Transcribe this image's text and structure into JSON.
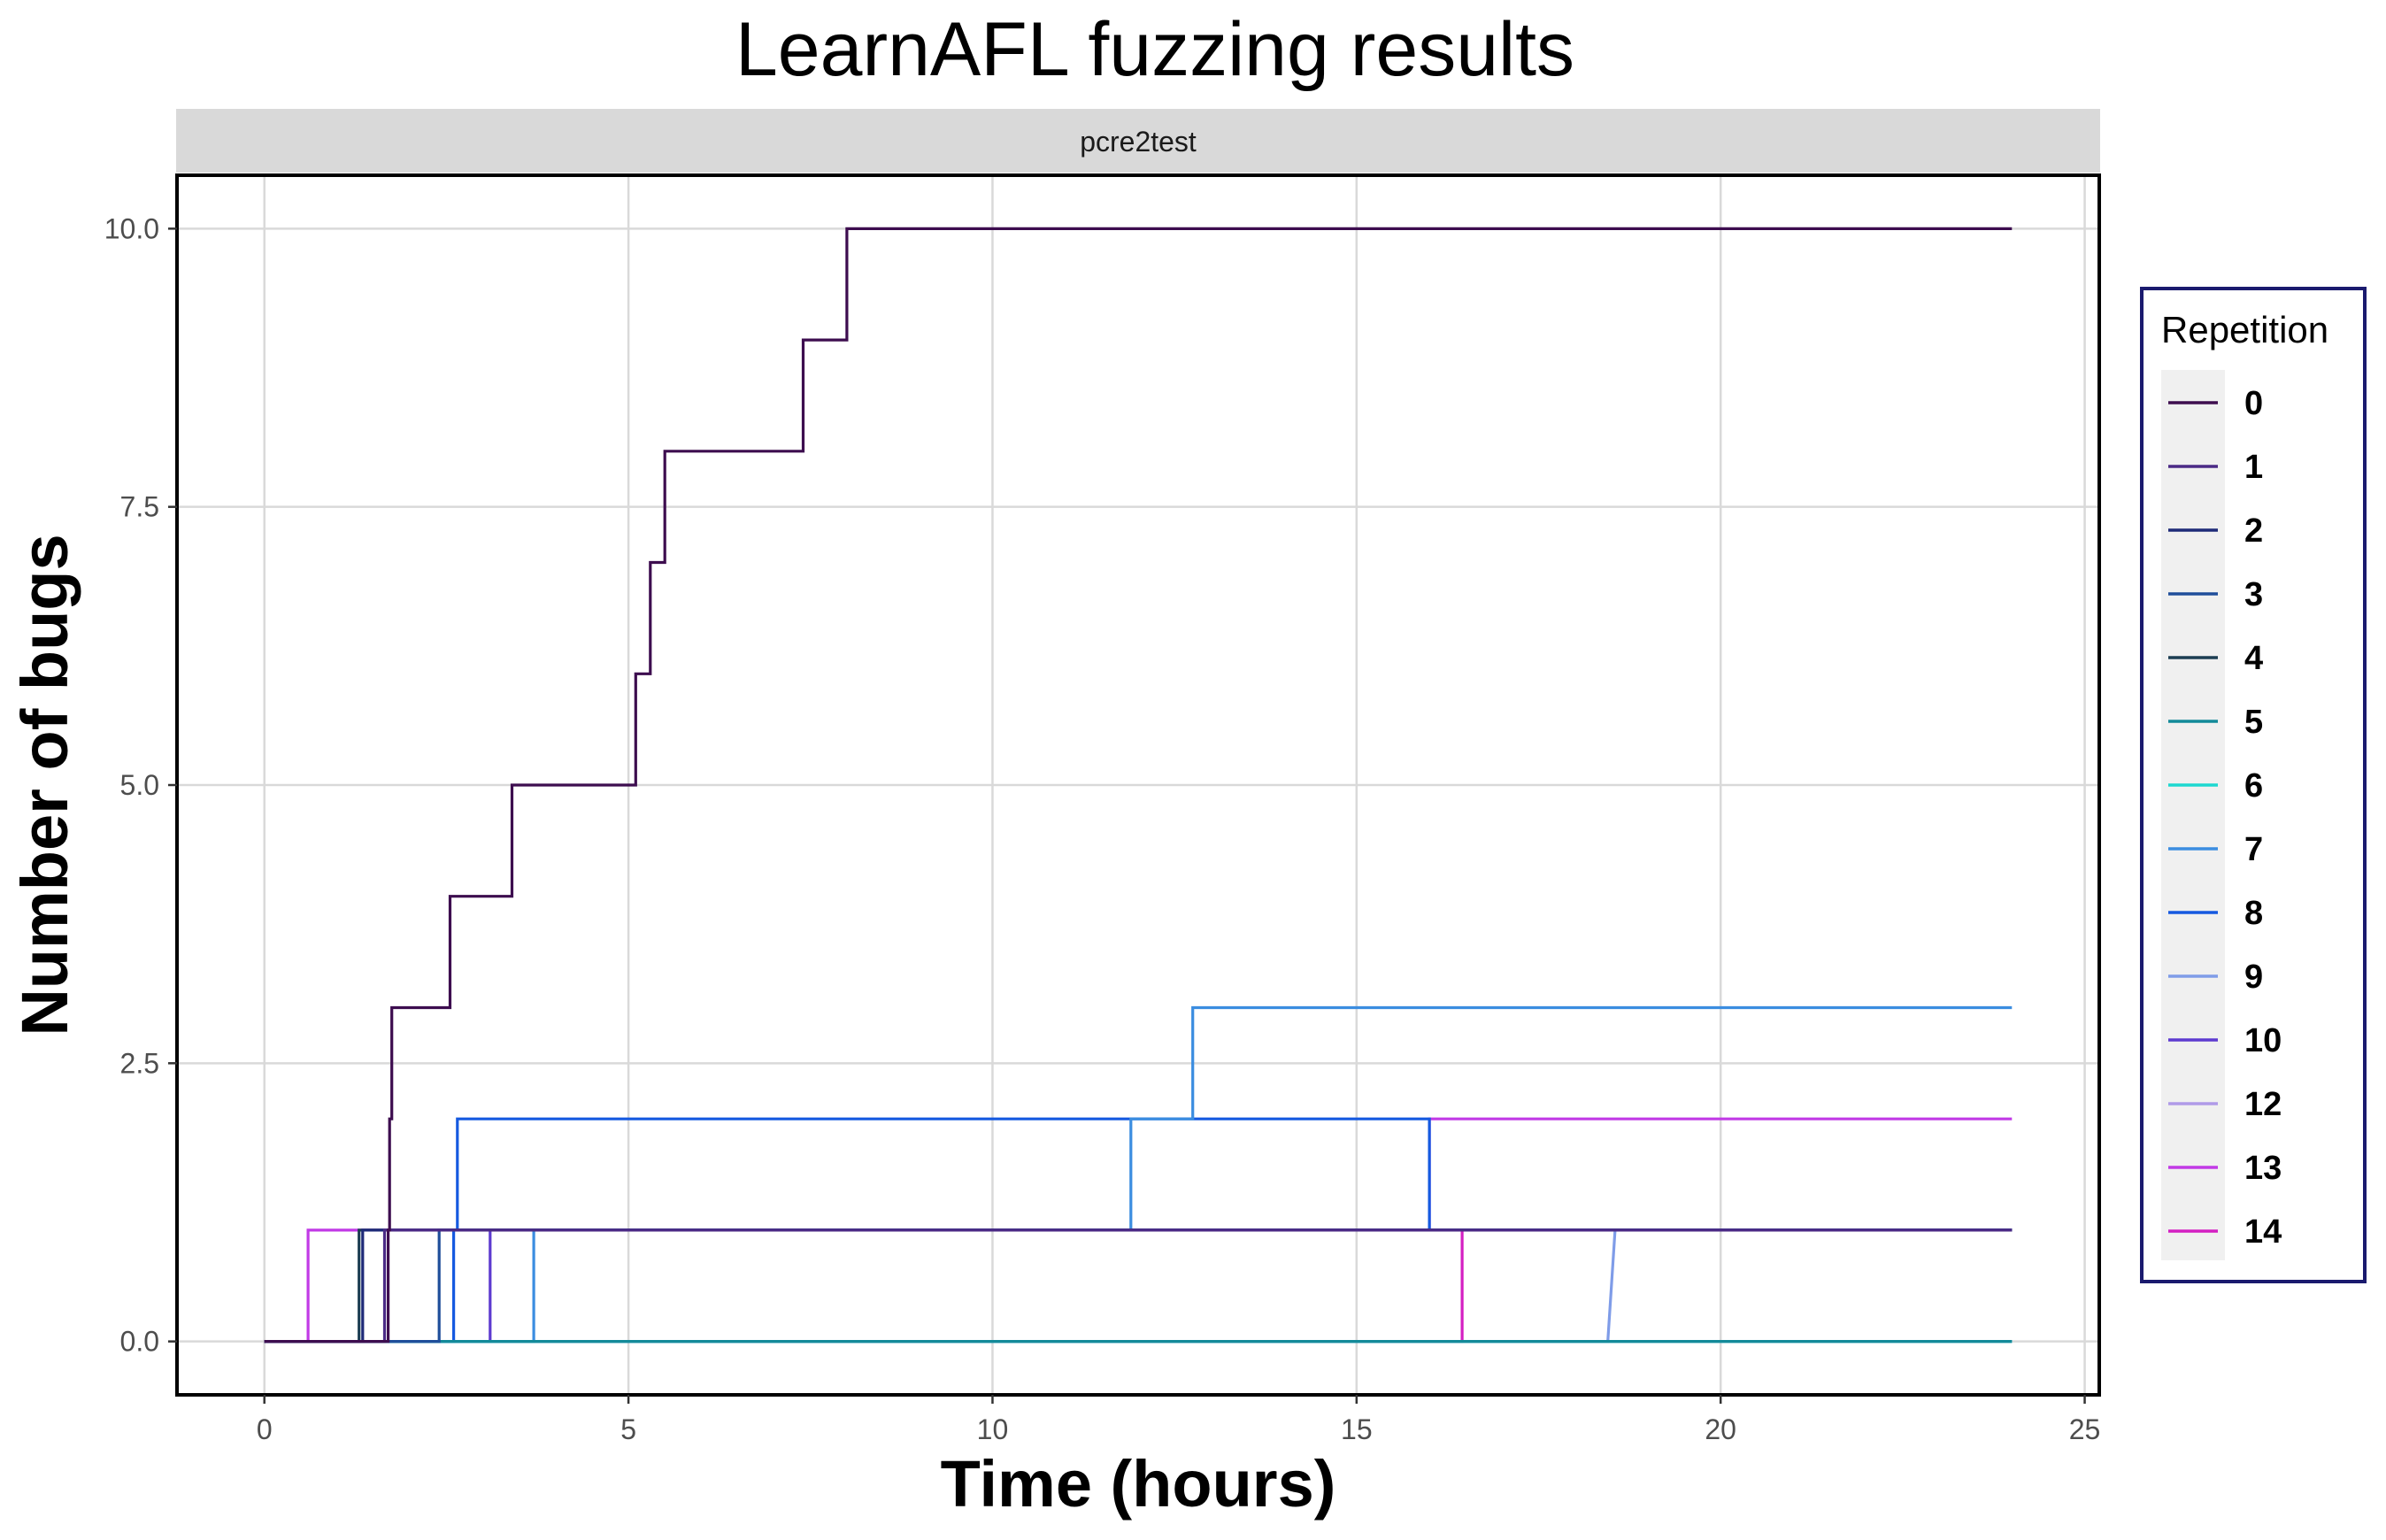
{
  "chart_data": {
    "type": "line",
    "step": true,
    "title": "LearnAFL fuzzing results",
    "facet": "pcre2test",
    "xlabel": "Time (hours)",
    "ylabel": "Number of bugs",
    "xlim": [
      -1.2,
      25.2
    ],
    "ylim": [
      -0.48,
      10.48
    ],
    "xticks": [
      0,
      5,
      10,
      15,
      20,
      25
    ],
    "yticks": [
      0.0,
      2.5,
      5.0,
      7.5,
      10.0
    ],
    "xtick_labels": [
      "0",
      "5",
      "10",
      "15",
      "20",
      "25"
    ],
    "ytick_labels": [
      "0.0",
      "2.5",
      "5.0",
      "7.5",
      "10.0"
    ],
    "grid": true,
    "legend": {
      "title": "Repetition",
      "position": "right"
    },
    "series": [
      {
        "name": "0",
        "color": "#3d0d4f",
        "points": [
          [
            0,
            0
          ],
          [
            1.7,
            0
          ],
          [
            1.7,
            1
          ],
          [
            1.72,
            1
          ],
          [
            1.72,
            2
          ],
          [
            1.75,
            2
          ],
          [
            1.75,
            3
          ],
          [
            2.55,
            3
          ],
          [
            2.55,
            4
          ],
          [
            3.4,
            4
          ],
          [
            3.4,
            5
          ],
          [
            5.1,
            5
          ],
          [
            5.1,
            6
          ],
          [
            5.3,
            6
          ],
          [
            5.3,
            7
          ],
          [
            5.5,
            7
          ],
          [
            5.5,
            8
          ],
          [
            7.4,
            8
          ],
          [
            7.4,
            9
          ],
          [
            8.0,
            9
          ],
          [
            8.0,
            10
          ],
          [
            24,
            10
          ]
        ]
      },
      {
        "name": "1",
        "color": "#4b2a86",
        "points": [
          [
            0,
            0
          ],
          [
            1.65,
            0
          ],
          [
            1.65,
            1
          ],
          [
            24,
            1
          ]
        ]
      },
      {
        "name": "2",
        "color": "#1e2a78",
        "points": [
          [
            0,
            0
          ],
          [
            1.35,
            0
          ],
          [
            1.35,
            1
          ],
          [
            24,
            1
          ]
        ]
      },
      {
        "name": "3",
        "color": "#1f4e9a",
        "points": [
          [
            0,
            0
          ],
          [
            2.4,
            0
          ],
          [
            2.4,
            1
          ],
          [
            24,
            1
          ]
        ]
      },
      {
        "name": "4",
        "color": "#1c3d52",
        "points": [
          [
            0,
            0
          ],
          [
            1.3,
            0
          ],
          [
            1.3,
            1
          ],
          [
            24,
            1
          ]
        ]
      },
      {
        "name": "5",
        "color": "#138a99",
        "points": [
          [
            0,
            0
          ],
          [
            24,
            0
          ]
        ]
      },
      {
        "name": "6",
        "color": "#1ed8d0",
        "points": [
          [
            0,
            0
          ],
          [
            24,
            0
          ]
        ]
      },
      {
        "name": "7",
        "color": "#3b8de0",
        "points": [
          [
            0,
            0
          ],
          [
            3.7,
            0
          ],
          [
            3.7,
            1
          ],
          [
            11.9,
            1
          ],
          [
            11.9,
            2
          ],
          [
            12.75,
            2
          ],
          [
            12.75,
            3
          ],
          [
            24,
            3
          ]
        ]
      },
      {
        "name": "8",
        "color": "#1559e0",
        "points": [
          [
            0,
            0
          ],
          [
            2.6,
            0
          ],
          [
            2.6,
            1
          ],
          [
            2.65,
            1
          ],
          [
            2.65,
            2
          ],
          [
            16.0,
            2
          ],
          [
            16.0,
            1
          ],
          [
            24,
            1
          ]
        ]
      },
      {
        "name": "9",
        "color": "#7f9ce8",
        "points": [
          [
            0,
            0
          ],
          [
            18.45,
            0
          ],
          [
            18.55,
            1
          ],
          [
            24,
            1
          ]
        ]
      },
      {
        "name": "10",
        "color": "#5d3ad0",
        "points": [
          [
            0,
            0
          ],
          [
            3.1,
            0
          ],
          [
            3.1,
            1
          ],
          [
            24,
            1
          ]
        ]
      },
      {
        "name": "12",
        "color": "#b09ae8",
        "points": [
          [
            0,
            0
          ],
          [
            24,
            0
          ]
        ]
      },
      {
        "name": "13",
        "color": "#c13ae6",
        "points": [
          [
            0,
            0
          ],
          [
            0.6,
            0
          ],
          [
            0.6,
            1
          ],
          [
            16.0,
            1
          ],
          [
            16.0,
            2
          ],
          [
            24,
            2
          ]
        ]
      },
      {
        "name": "14",
        "color": "#d41fc2",
        "points": [
          [
            0,
            0
          ],
          [
            16.45,
            0
          ],
          [
            16.45,
            1
          ],
          [
            24,
            1
          ]
        ]
      }
    ]
  }
}
